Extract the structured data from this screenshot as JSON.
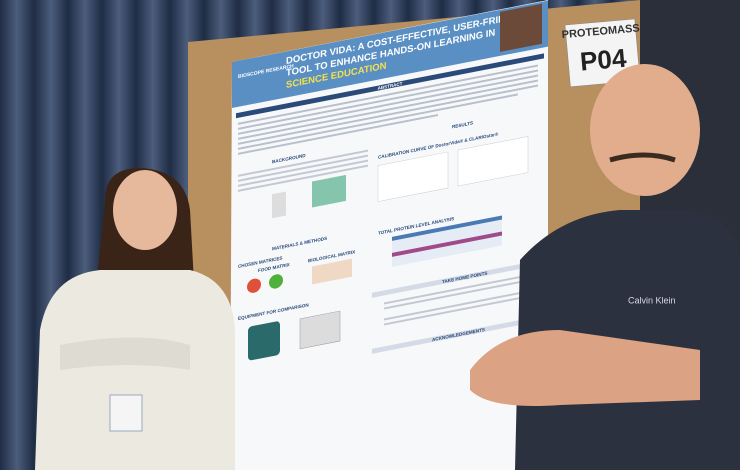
{
  "poster": {
    "logo": "BIOSCOPE RESEARCH",
    "title_lines": [
      "DOCTOR VIDA: A COST-EFFECTIVE, USER-FRIENDLY",
      "TOOL TO ENHANCE HANDS-ON LEARNING IN",
      "SCIENCE EDUCATION"
    ],
    "sections": {
      "abstract": "ABSTRACT",
      "background": "BACKGROUND",
      "results": "RESULTS",
      "calibration": "CALIBRATION CURVE OF DoctorVida® & CLARIOstar®",
      "protein": "TOTAL PROTEIN LEVEL ANALYSIS",
      "methods": "MATERIALS & METHODS",
      "matrices": "CHOSEN MATRICES",
      "food": "FOOD MATRIX",
      "biological": "BIOLOGICAL MATRIX",
      "equipment": "EQUIPMENT FOR COMPARISON",
      "take_home": "TAKE HOME POINTS",
      "acknowledgements": "ACKNOWLEDGEMENTS"
    }
  },
  "sign": {
    "event": "PROTEOMASS",
    "code": "P04"
  },
  "shirt": "Calvin Klein"
}
